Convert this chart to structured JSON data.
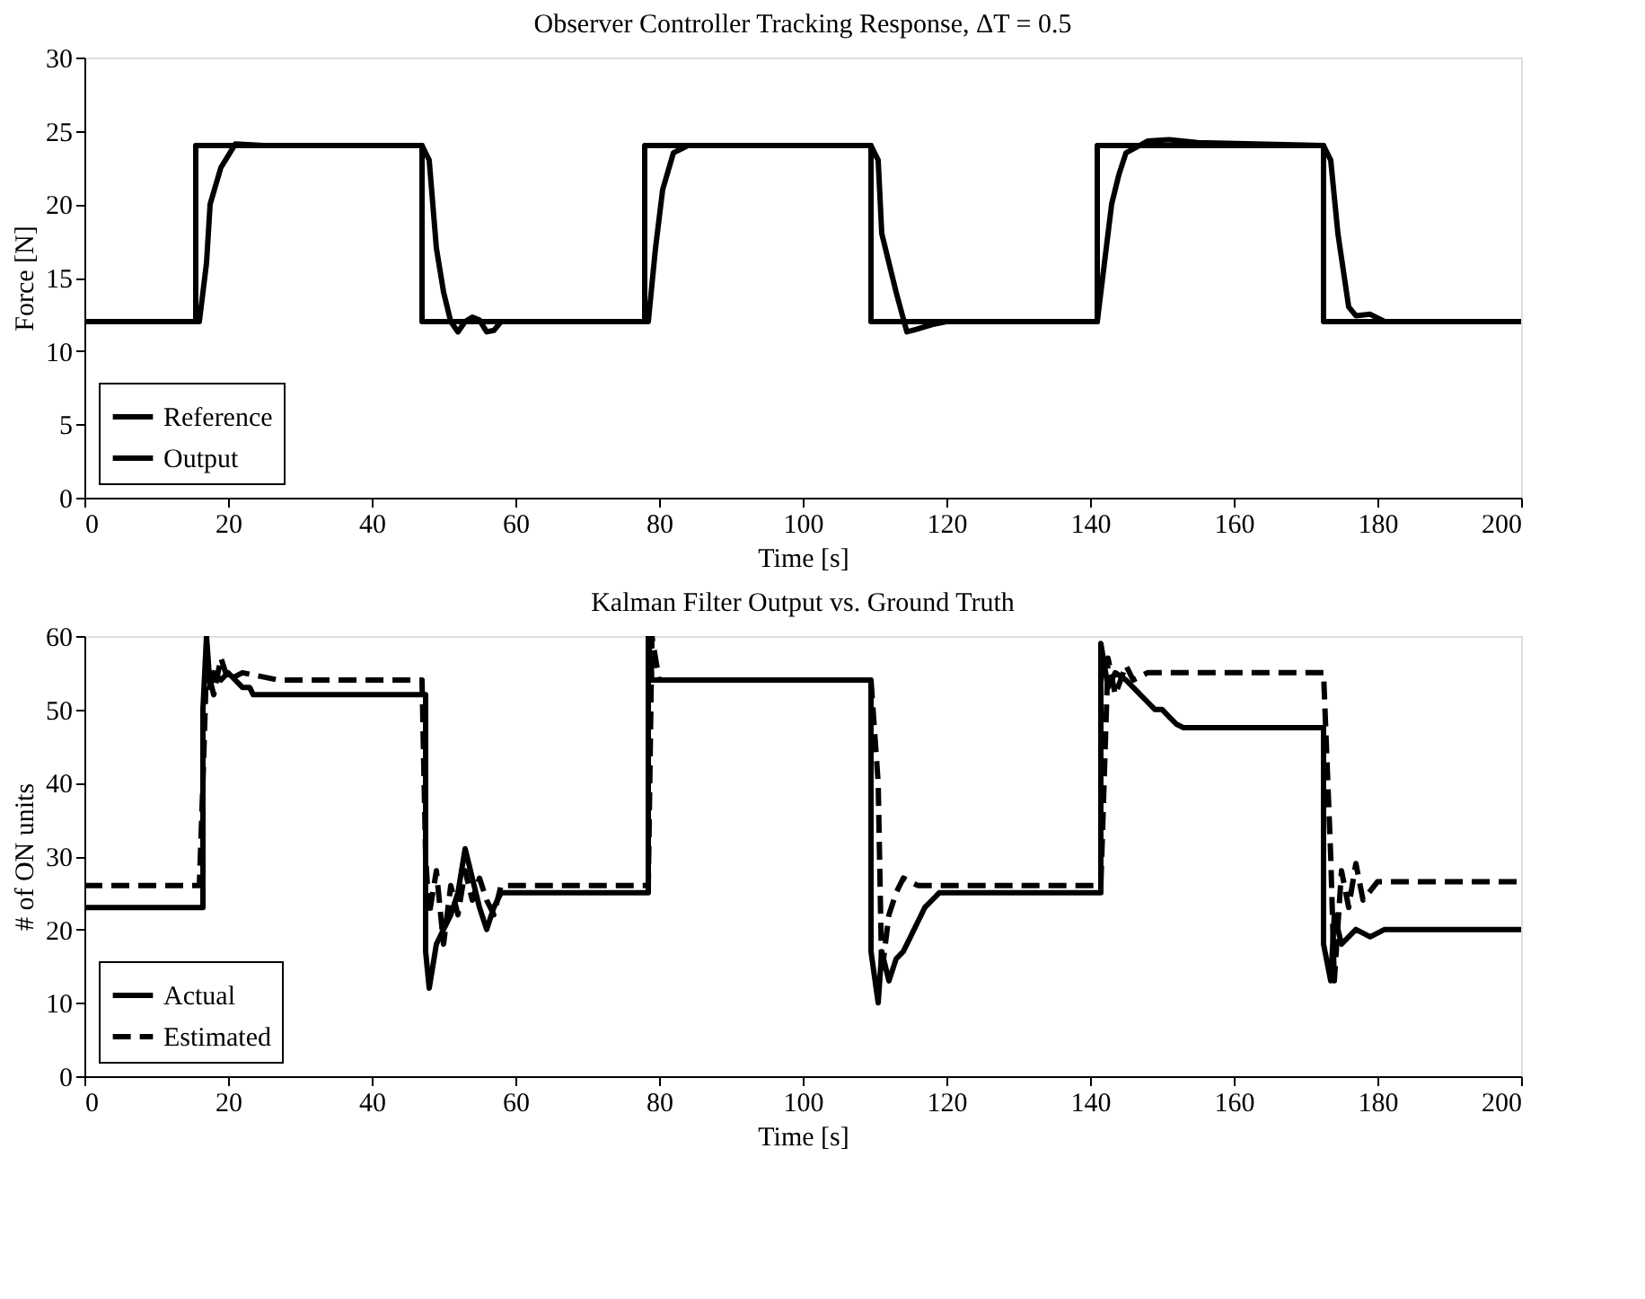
{
  "chart_data": [
    {
      "type": "line",
      "title": "Observer Controller Tracking Response, ΔT = 0.5",
      "xlabel": "Time [s]",
      "ylabel": "Force [N]",
      "xlim": [
        0,
        200
      ],
      "ylim": [
        0,
        30
      ],
      "xticks": [
        0,
        20,
        40,
        60,
        80,
        100,
        120,
        140,
        160,
        180,
        200
      ],
      "yticks": [
        0,
        5,
        10,
        15,
        20,
        25,
        30
      ],
      "grid": false,
      "legend": "bottom left",
      "marker": "none",
      "series": [
        {
          "name": "Reference",
          "color": "#000000",
          "line_style": "solid",
          "x": [
            0,
            15.5,
            15.5,
            47,
            47,
            78,
            78,
            109.5,
            109.5,
            141,
            141,
            172.5,
            172.5,
            200
          ],
          "values": [
            12,
            12,
            24,
            24,
            12,
            12,
            24,
            24,
            12,
            12,
            24,
            24,
            12,
            12
          ]
        },
        {
          "name": "Output",
          "color": "#000000",
          "line_style": "solid",
          "x": [
            0,
            16,
            17,
            17.5,
            19,
            21,
            25,
            47,
            48,
            49,
            50,
            51,
            52,
            53,
            54,
            55,
            56,
            57,
            58,
            78.5,
            79.5,
            80.5,
            82,
            84,
            109.5,
            110.5,
            111,
            113,
            114.5,
            116,
            118,
            120,
            141,
            142,
            143,
            144,
            145,
            148,
            151,
            155,
            172.5,
            173.5,
            174.5,
            176,
            177,
            179,
            181,
            200
          ],
          "values": [
            12,
            12,
            16,
            20,
            22.5,
            24.1,
            24,
            24,
            23,
            17,
            14,
            12,
            11.3,
            12,
            12.3,
            12.1,
            11.3,
            11.4,
            12,
            12,
            17,
            21,
            23.5,
            24,
            24,
            23,
            18,
            14,
            11.3,
            11.5,
            11.8,
            12,
            12,
            16,
            20,
            22,
            23.5,
            24.3,
            24.4,
            24.2,
            24,
            23,
            18,
            13,
            12.4,
            12.5,
            12,
            12
          ]
        }
      ]
    },
    {
      "type": "line",
      "title": "Kalman Filter Output vs. Ground Truth",
      "xlabel": "Time [s]",
      "ylabel": "# of ON units",
      "xlim": [
        0,
        200
      ],
      "ylim": [
        0,
        60
      ],
      "xticks": [
        0,
        20,
        40,
        60,
        80,
        100,
        120,
        140,
        160,
        180,
        200
      ],
      "yticks": [
        0,
        10,
        20,
        30,
        40,
        50,
        60
      ],
      "grid": false,
      "legend": "bottom left",
      "marker": "none",
      "series": [
        {
          "name": "Actual",
          "color": "#000000",
          "line_style": "solid",
          "x": [
            0,
            16.5,
            16.5,
            17,
            17.5,
            18,
            19,
            20,
            21,
            22,
            23,
            23.5,
            47.5,
            47.5,
            48,
            49,
            50,
            51,
            52,
            53,
            54,
            55,
            56,
            57,
            58,
            59,
            78.5,
            78.5,
            79,
            80,
            109.5,
            109.5,
            110.5,
            111,
            112,
            113,
            114,
            115,
            116,
            117,
            118,
            119,
            120,
            141.5,
            141.5,
            142.5,
            143.5,
            145,
            147,
            149,
            150,
            151,
            152,
            153,
            154,
            172.5,
            172.5,
            173.5,
            174,
            175,
            177,
            179,
            181,
            200
          ],
          "values": [
            23,
            23,
            50,
            60,
            53,
            55,
            54,
            55,
            54,
            53,
            53,
            52,
            52,
            17,
            12,
            18,
            20,
            22,
            25,
            31,
            27,
            23,
            20,
            23,
            25,
            25,
            25,
            60,
            54,
            54,
            54,
            17,
            10,
            17,
            13,
            16,
            17,
            19,
            21,
            23,
            24,
            25,
            25,
            25,
            59,
            53,
            55,
            54,
            52,
            50,
            50,
            49,
            48,
            47.5,
            47.5,
            47.5,
            18,
            13,
            22,
            18,
            20,
            19,
            20,
            20
          ]
        },
        {
          "name": "Estimated",
          "color": "#000000",
          "line_style": "dashed",
          "x": [
            0,
            16,
            16.5,
            17,
            18,
            19,
            20,
            22,
            27,
            47,
            47.5,
            48,
            49,
            50,
            51,
            52,
            53,
            54,
            55,
            56,
            57,
            58,
            78.5,
            79,
            80,
            109.5,
            110.5,
            111,
            112,
            113,
            114,
            116,
            120,
            141.5,
            142.5,
            143.5,
            145,
            146,
            148,
            172.5,
            173.5,
            174,
            175,
            176,
            177,
            178,
            180,
            200
          ],
          "values": [
            26,
            26,
            40,
            56,
            52,
            57,
            54,
            55,
            54,
            54,
            30,
            22,
            28,
            18,
            26,
            22,
            28,
            24,
            27,
            24,
            22,
            26,
            26,
            60,
            54,
            54,
            40,
            14,
            22,
            25,
            27,
            26,
            26,
            26,
            57,
            52,
            56,
            54,
            55,
            55,
            30,
            13,
            28,
            23,
            29,
            24,
            26.5,
            26.5
          ]
        }
      ]
    }
  ]
}
